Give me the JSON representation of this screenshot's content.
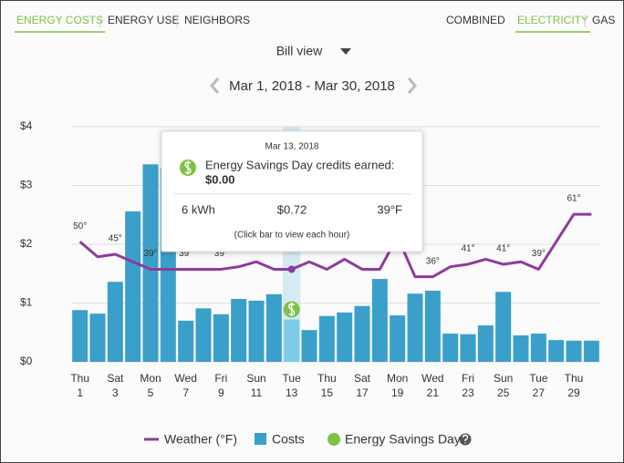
{
  "nav": {
    "views": [
      {
        "label": "ENERGY COSTS",
        "active": true
      },
      {
        "label": "ENERGY USE",
        "active": false
      },
      {
        "label": "NEIGHBORS",
        "active": false
      }
    ],
    "fuels": [
      {
        "label": "COMBINED",
        "active": false
      },
      {
        "label": "ELECTRICITY",
        "active": true
      },
      {
        "label": "GAS",
        "active": false
      }
    ]
  },
  "view_selector": "Bill view",
  "period": "Mar 1, 2018 - Mar 30, 2018",
  "tooltip": {
    "date": "Mar 13, 2018",
    "headline": "Energy Savings Day credits earned:",
    "credit": "$0.00",
    "usage": "6 kWh",
    "cost": "$0.72",
    "temperature": "39°F",
    "hint": "(Click bar to view each hour)"
  },
  "chart_data": {
    "type": "bar",
    "categories": [
      [
        "Thu",
        "1"
      ],
      null,
      [
        "Sat",
        "3"
      ],
      null,
      [
        "Mon",
        "5"
      ],
      null,
      [
        "Wed",
        "7"
      ],
      null,
      [
        "Fri",
        "9"
      ],
      null,
      [
        "Sun",
        "11"
      ],
      null,
      [
        "Tue",
        "13"
      ],
      null,
      [
        "Thu",
        "15"
      ],
      null,
      [
        "Sat",
        "17"
      ],
      null,
      [
        "Mon",
        "19"
      ],
      null,
      [
        "Wed",
        "21"
      ],
      null,
      [
        "Fri",
        "23"
      ],
      null,
      [
        "Sun",
        "25"
      ],
      null,
      [
        "Tue",
        "27"
      ],
      null,
      [
        "Thu",
        "29"
      ],
      null
    ],
    "series": [
      {
        "name": "Costs",
        "color": "#3a9fc9",
        "colors": [
          "#3a9fc9",
          "#3a9fc9",
          "#3a9fc9",
          "#3a9fc9",
          "#3a9fc9",
          "#3a9fc9",
          "#3a9fc9",
          "#3a9fc9",
          "#3a9fc9",
          "#3a9fc9",
          "#3a9fc9",
          "#3a9fc9",
          "#7ccbea",
          "#3a9fc9",
          "#3a9fc9",
          "#3a9fc9",
          "#3a9fc9",
          "#3a9fc9",
          "#3a9fc9",
          "#3a9fc9",
          "#3a9fc9",
          "#3a9fc9",
          "#3a9fc9",
          "#3a9fc9",
          "#3a9fc9",
          "#3a9fc9",
          "#3a9fc9",
          "#3a9fc9",
          "#3a9fc9",
          "#3a9fc9"
        ],
        "values": [
          0.88,
          0.82,
          1.36,
          2.56,
          3.36,
          3.3,
          0.7,
          0.91,
          0.81,
          1.07,
          1.04,
          1.15,
          0.72,
          0.54,
          0.78,
          0.84,
          0.95,
          1.41,
          0.79,
          1.16,
          1.21,
          0.48,
          0.47,
          0.62,
          1.19,
          0.45,
          0.48,
          0.37,
          0.36,
          0.36
        ]
      },
      {
        "name": "Weather (°F)",
        "color": "#8e3a9e",
        "type": "line",
        "axis": "y2",
        "values": [
          50,
          44,
          45,
          42,
          39,
          39,
          39,
          39,
          39,
          40,
          42,
          39,
          39,
          42,
          39,
          43,
          39,
          39,
          52,
          36,
          36,
          40,
          41,
          43,
          41,
          42,
          39,
          50,
          61,
          61
        ],
        "value_labels": [
          "50°",
          null,
          "45°",
          null,
          "39°",
          null,
          "39°",
          null,
          "39°",
          null,
          null,
          null,
          null,
          null,
          null,
          null,
          null,
          null,
          null,
          null,
          "36°",
          null,
          "41°",
          null,
          "41°",
          null,
          "39°",
          null,
          "61°",
          null
        ]
      }
    ],
    "savings_label": "Energy Savings Day",
    "savings_days": [
      13
    ],
    "savings_color": "#7dc242",
    "ylim": [
      0,
      4
    ],
    "yticks": [
      {
        "value": 0,
        "label": "$0"
      },
      {
        "value": 1,
        "label": "$1"
      },
      {
        "value": 2,
        "label": "$2"
      },
      {
        "value": 3,
        "label": "$3"
      },
      {
        "value": 4,
        "label": "$4"
      }
    ],
    "y2lim": [
      2,
      96
    ],
    "grid": true,
    "highlight_color": "#d6eaf4"
  }
}
